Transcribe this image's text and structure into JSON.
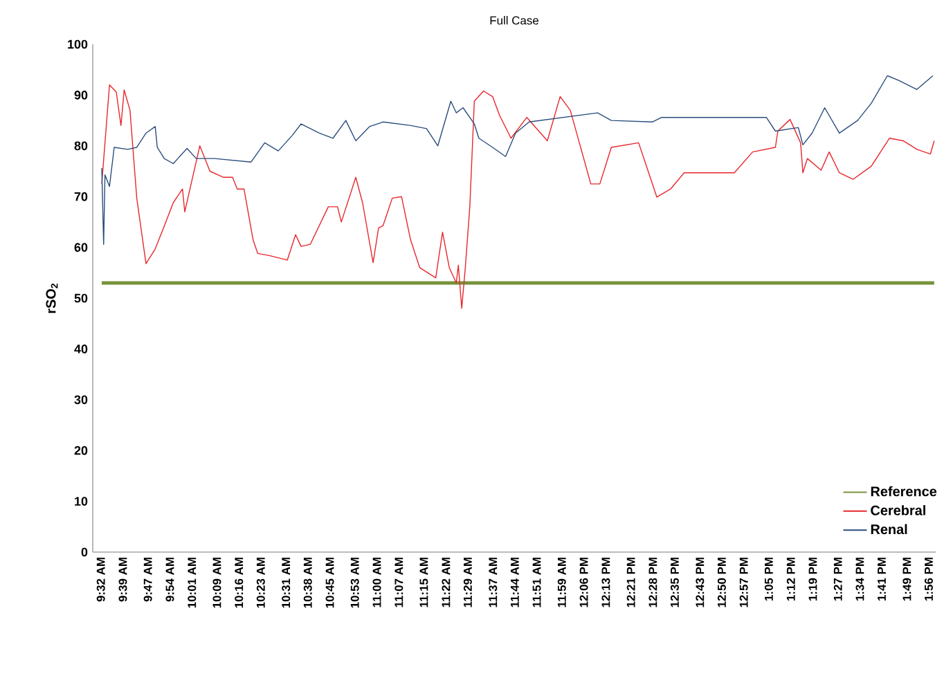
{
  "chart_data": {
    "type": "line",
    "title": "Full Case",
    "ylabel": "rSO$_{2}$",
    "xlim": [
      9.49,
      13.97
    ],
    "ylim": [
      0,
      100
    ],
    "yticks": [
      0,
      10,
      20,
      30,
      40,
      50,
      60,
      70,
      80,
      90,
      100
    ],
    "xticks": [
      {
        "value": 9.533,
        "label": "9:32 AM"
      },
      {
        "value": 9.65,
        "label": "9:39 AM"
      },
      {
        "value": 9.783,
        "label": "9:47 AM"
      },
      {
        "value": 9.9,
        "label": "9:54 AM"
      },
      {
        "value": 10.017,
        "label": "10:01 AM"
      },
      {
        "value": 10.15,
        "label": "10:09 AM"
      },
      {
        "value": 10.267,
        "label": "10:16 AM"
      },
      {
        "value": 10.383,
        "label": "10:23 AM"
      },
      {
        "value": 10.517,
        "label": "10:31 AM"
      },
      {
        "value": 10.633,
        "label": "10:38 AM"
      },
      {
        "value": 10.75,
        "label": "10:45 AM"
      },
      {
        "value": 10.883,
        "label": "10:53 AM"
      },
      {
        "value": 11.0,
        "label": "11:00 AM"
      },
      {
        "value": 11.117,
        "label": "11:07 AM"
      },
      {
        "value": 11.25,
        "label": "11:15 AM"
      },
      {
        "value": 11.367,
        "label": "11:22 AM"
      },
      {
        "value": 11.483,
        "label": "11:29 AM"
      },
      {
        "value": 11.617,
        "label": "11:37 AM"
      },
      {
        "value": 11.733,
        "label": "11:44 AM"
      },
      {
        "value": 11.85,
        "label": "11:51 AM"
      },
      {
        "value": 11.983,
        "label": "11:59 AM"
      },
      {
        "value": 12.1,
        "label": "12:06 PM"
      },
      {
        "value": 12.217,
        "label": "12:13 PM"
      },
      {
        "value": 12.35,
        "label": "12:21 PM"
      },
      {
        "value": 12.467,
        "label": "12:28 PM"
      },
      {
        "value": 12.583,
        "label": "12:35 PM"
      },
      {
        "value": 12.717,
        "label": "12:43 PM"
      },
      {
        "value": 12.833,
        "label": "12:50 PM"
      },
      {
        "value": 12.95,
        "label": "12:57 PM"
      },
      {
        "value": 13.083,
        "label": "1:05 PM"
      },
      {
        "value": 13.2,
        "label": "1:12 PM"
      },
      {
        "value": 13.317,
        "label": "1:19 PM"
      },
      {
        "value": 13.45,
        "label": "1:27 PM"
      },
      {
        "value": 13.567,
        "label": "1:34 PM"
      },
      {
        "value": 13.683,
        "label": "1:41 PM"
      },
      {
        "value": 13.817,
        "label": "1:49 PM"
      },
      {
        "value": 13.933,
        "label": "1:56 PM"
      }
    ],
    "legend": "bottom right",
    "marker": "none",
    "grid": false,
    "series": [
      {
        "name": "Reference",
        "color": "#77933c",
        "x": [
          9.538,
          13.962
        ],
        "values": [
          53,
          53
        ]
      },
      {
        "name": "Cerebral",
        "color": "#e8262b",
        "x": [
          9.538,
          9.579,
          9.615,
          9.64,
          9.657,
          9.688,
          9.724,
          9.773,
          9.822,
          9.868,
          9.918,
          9.967,
          9.979,
          10.059,
          10.113,
          10.185,
          10.233,
          10.258,
          10.294,
          10.342,
          10.367,
          10.428,
          10.524,
          10.568,
          10.597,
          10.646,
          10.742,
          10.791,
          10.811,
          10.888,
          10.924,
          10.98,
          11.009,
          11.033,
          11.082,
          11.131,
          11.179,
          11.228,
          11.313,
          11.349,
          11.385,
          11.422,
          11.433,
          11.451,
          11.47,
          11.494,
          11.518,
          11.567,
          11.615,
          11.652,
          11.713,
          11.797,
          11.906,
          11.974,
          12.028,
          12.137,
          12.185,
          12.246,
          12.391,
          12.488,
          12.561,
          12.633,
          12.804,
          12.9,
          12.997,
          13.118,
          13.131,
          13.196,
          13.252,
          13.264,
          13.288,
          13.361,
          13.404,
          13.458,
          13.531,
          13.628,
          13.724,
          13.797,
          13.87,
          13.942,
          13.962
        ],
        "values": [
          72.5,
          92,
          90.6,
          84,
          91,
          87,
          69.7,
          56.8,
          59.7,
          64,
          68.8,
          71.5,
          67,
          80,
          75,
          73.8,
          73.8,
          71.5,
          71.5,
          61.5,
          58.8,
          58.4,
          57.5,
          62.5,
          60.2,
          60.6,
          68,
          68,
          65,
          73.8,
          68.8,
          57,
          63.8,
          64.3,
          69.7,
          70,
          61.5,
          56,
          54,
          63,
          56,
          53,
          56.5,
          48,
          56,
          68,
          88.8,
          90.8,
          89.7,
          86,
          81.5,
          85.6,
          81,
          89.7,
          87,
          72.5,
          72.5,
          79.7,
          80.6,
          69.9,
          71.5,
          74.7,
          74.7,
          74.7,
          78.8,
          79.7,
          82.9,
          85.2,
          80.6,
          74.7,
          77.5,
          75.2,
          78.8,
          74.7,
          73.4,
          76,
          81.5,
          81,
          79.3,
          78.4,
          81
        ]
      },
      {
        "name": "Renal",
        "color": "#2a4d7c",
        "x": [
          9.538,
          9.548,
          9.555,
          9.579,
          9.604,
          9.676,
          9.724,
          9.773,
          9.822,
          9.833,
          9.87,
          9.918,
          9.991,
          10.04,
          10.137,
          10.331,
          10.404,
          10.476,
          10.549,
          10.597,
          10.694,
          10.767,
          10.835,
          10.888,
          10.961,
          11.033,
          11.179,
          11.264,
          11.324,
          11.393,
          11.422,
          11.458,
          11.518,
          11.542,
          11.615,
          11.684,
          11.737,
          11.809,
          12.173,
          12.246,
          12.464,
          12.513,
          13.07,
          13.118,
          13.24,
          13.264,
          13.313,
          13.38,
          13.458,
          13.555,
          13.628,
          13.713,
          13.773,
          13.87,
          13.955
        ],
        "values": [
          75.6,
          60.6,
          74.3,
          72,
          79.7,
          79.3,
          79.7,
          82.5,
          83.8,
          79.7,
          77.5,
          76.5,
          79.5,
          77.5,
          77.5,
          76.8,
          80.6,
          79,
          82,
          84.3,
          82.5,
          81.5,
          85,
          81,
          83.8,
          84.7,
          84,
          83.4,
          80,
          88.8,
          86.5,
          87.5,
          84.3,
          81.5,
          79.7,
          77.9,
          82.5,
          84.7,
          86.5,
          85,
          84.7,
          85.6,
          85.6,
          82.9,
          83.6,
          80.2,
          82.5,
          87.5,
          82.5,
          85,
          88.4,
          93.8,
          92.9,
          91.1,
          93.8
        ]
      }
    ]
  }
}
